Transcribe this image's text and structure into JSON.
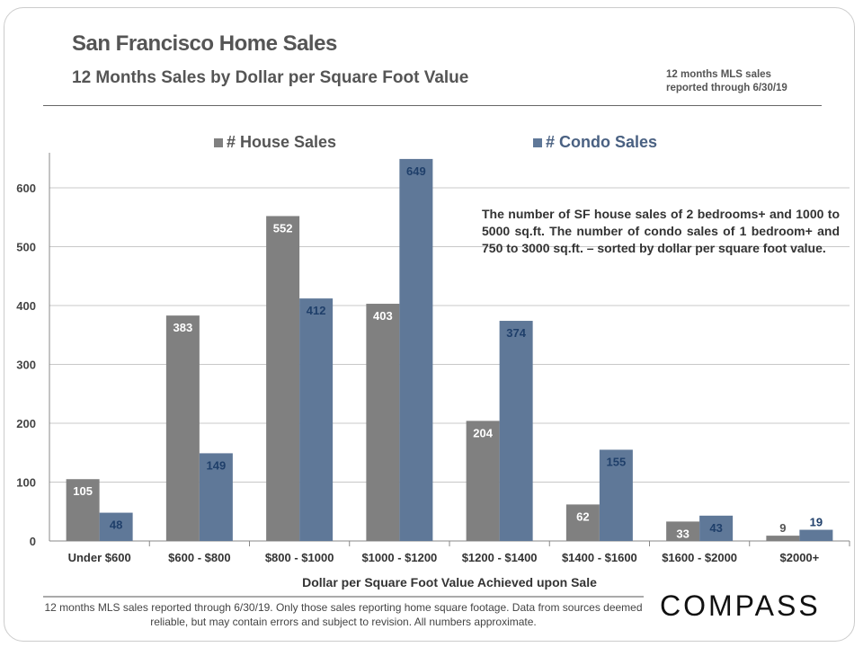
{
  "header": {
    "title": "San Francisco Home Sales",
    "subtitle": "12 Months Sales by Dollar per Square Foot Value",
    "note_line1": "12 months MLS sales",
    "note_line2": "reported through 6/30/19"
  },
  "annotation": "The number of SF house sales of 2 bedrooms+ and 1000 to 5000 sq.ft. The number of condo sales of 1 bedroom+ and 750 to 3000 sq.ft. – sorted by dollar per square foot value.",
  "footer": {
    "text": "12 months MLS sales reported through 6/30/19. Only those sales reporting home square footage. Data from sources  deemed reliable, but may contain errors and subject to revision. All numbers approximate.",
    "logo": "COMPASS"
  },
  "chart_data": {
    "type": "bar",
    "title": "",
    "xlabel": "Dollar per Square Foot Value Achieved upon Sale",
    "ylabel": "",
    "ylim": [
      0,
      650
    ],
    "yticks": [
      0,
      100,
      200,
      300,
      400,
      500,
      600
    ],
    "grid": true,
    "legend_position": "top",
    "categories": [
      "Under $600",
      "$600 - $800",
      "$800 - $1000",
      "$1000 - $1200",
      "$1200 - $1400",
      "$1400 - $1600",
      "$1600 - $2000",
      "$2000+"
    ],
    "series": [
      {
        "name": "# House Sales",
        "color": "#808080",
        "label_color": "#ffffff",
        "values": [
          105,
          383,
          552,
          403,
          204,
          62,
          33,
          9
        ]
      },
      {
        "name": "# Condo Sales",
        "color": "#5f7898",
        "label_color": "#1f3f6a",
        "values": [
          48,
          149,
          412,
          649,
          374,
          155,
          43,
          19
        ]
      }
    ]
  }
}
